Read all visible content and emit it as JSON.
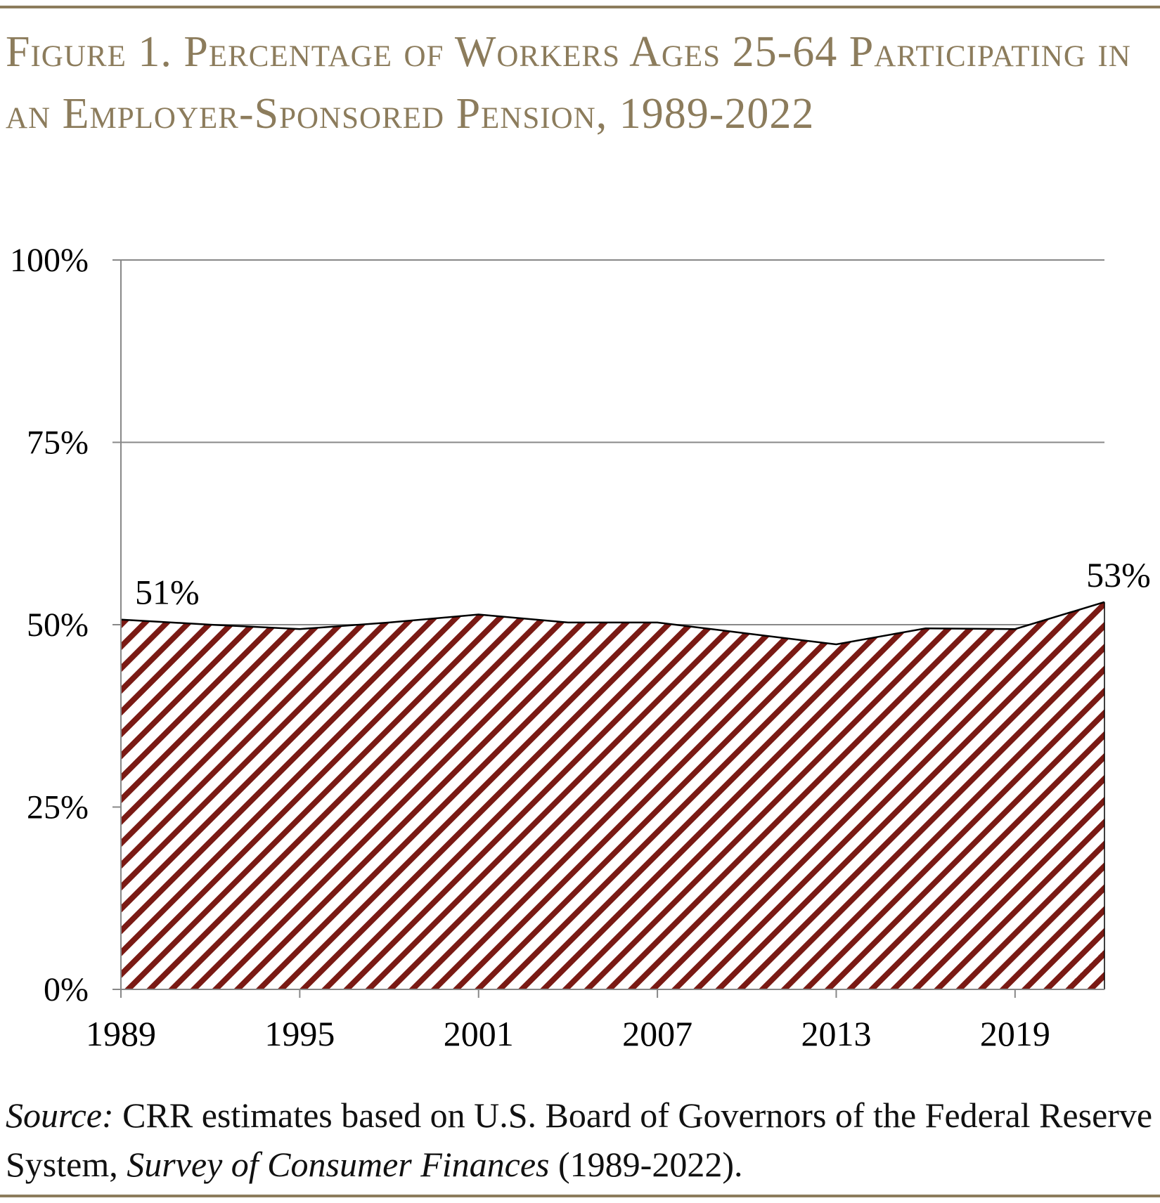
{
  "title": "Figure 1. Percentage of Workers Ages 25-64 Participating in an Employer-Sponsored Pension, 1989-2022",
  "source": {
    "label": "Source:",
    "text1": " CRR estimates based on U.S. Board of Governors of the Federal Reserve System, ",
    "survey": "Survey of Consumer Finances",
    "text2": " (1989-2022)."
  },
  "colors": {
    "title": "#8c7c5c",
    "fill_stripe": "#7a1a14",
    "grid": "#888888"
  },
  "chart_data": {
    "type": "area",
    "fill": "diagonal-hatch",
    "x": [
      1989,
      1992,
      1995,
      1998,
      2001,
      2004,
      2007,
      2010,
      2013,
      2016,
      2019,
      2022
    ],
    "values": [
      50.7,
      50.0,
      49.4,
      50.3,
      51.4,
      50.3,
      50.3,
      48.8,
      47.3,
      49.5,
      49.4,
      53.1
    ],
    "xlim": [
      1989,
      2022
    ],
    "ylim": [
      0,
      100
    ],
    "x_ticks": [
      "1989",
      "1995",
      "2001",
      "2007",
      "2013",
      "2019"
    ],
    "y_ticks": [
      "0%",
      "25%",
      "50%",
      "75%",
      "100%"
    ],
    "grid": "horizontal",
    "annotations": [
      {
        "x": 1989,
        "label": "51%"
      },
      {
        "x": 2022,
        "label": "53%"
      }
    ]
  }
}
